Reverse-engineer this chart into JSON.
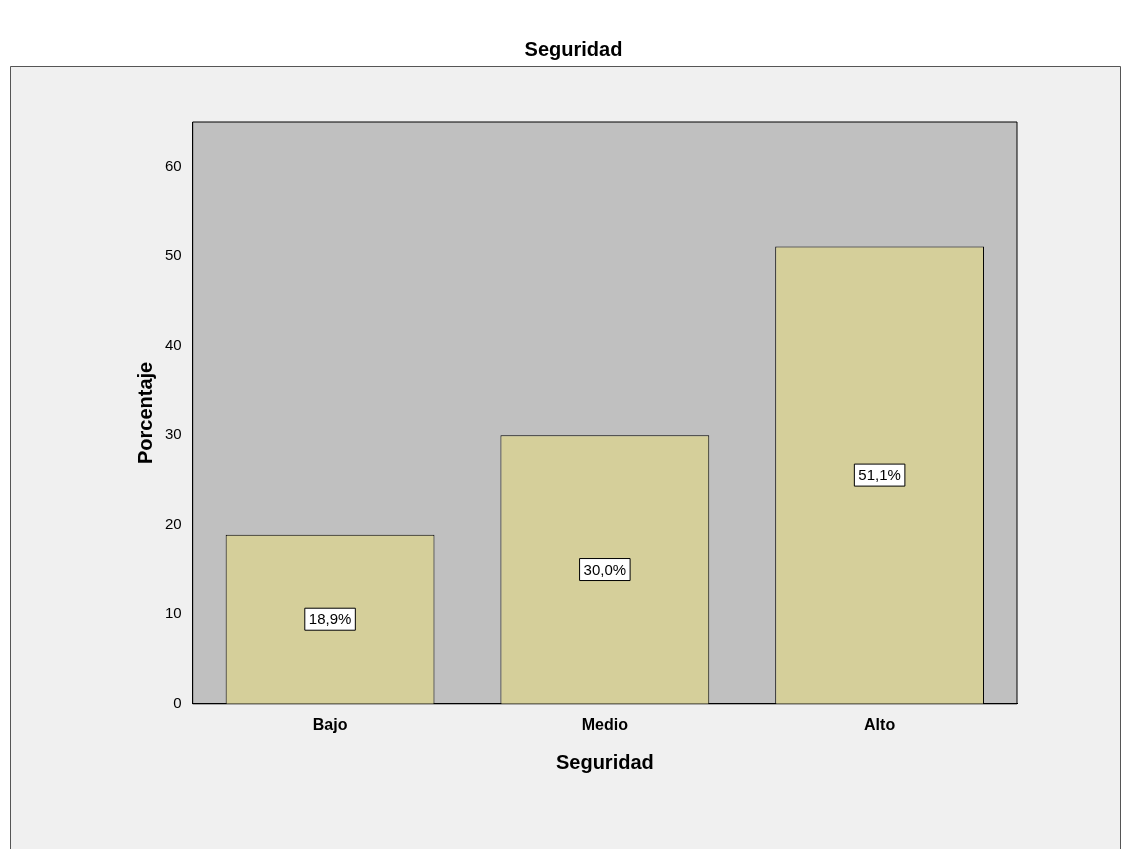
{
  "chart_data": {
    "type": "bar",
    "title": "Seguridad",
    "xlabel": "Seguridad",
    "ylabel": "Porcentaje",
    "categories": [
      "Bajo",
      "Medio",
      "Alto"
    ],
    "values": [
      18.9,
      30.0,
      51.1
    ],
    "value_labels": [
      "18,9%",
      "30,0%",
      "51,1%"
    ],
    "color": "#d5cf9a",
    "ylim": [
      0,
      65
    ],
    "yticks": [
      0,
      10,
      20,
      30,
      40,
      50,
      60
    ],
    "grid": false,
    "legend": false
  }
}
